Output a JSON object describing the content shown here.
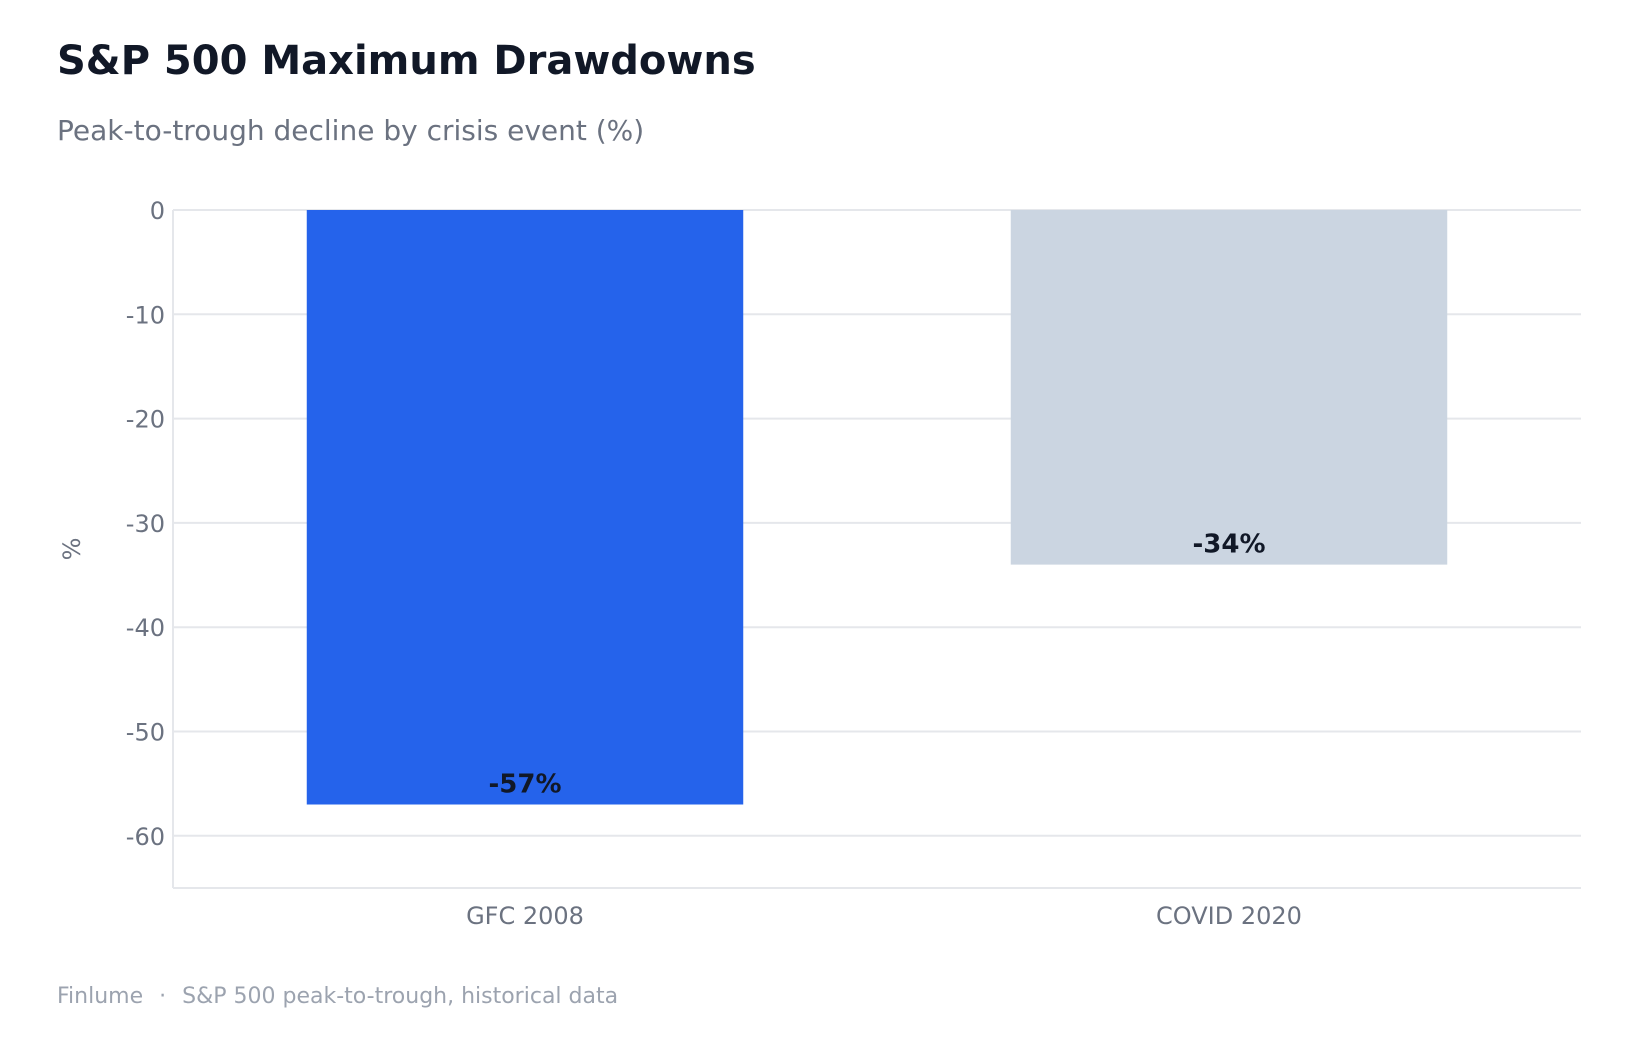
{
  "header": {
    "title": "S&P 500 Maximum Drawdowns",
    "subtitle": "Peak-to-trough decline by crisis event (%)"
  },
  "footer": {
    "brand": "Finlume",
    "separator": "·",
    "source": "S&P 500 peak-to-trough, historical data"
  },
  "colors": {
    "primary_bar": "#2563eb",
    "secondary_bar": "#cbd5e1",
    "grid": "#e5e7eb",
    "tick_text": "#6b7280",
    "value_label": "#111827"
  },
  "chart_data": {
    "type": "bar",
    "categories": [
      "GFC 2008",
      "COVID 2020"
    ],
    "values": [
      -57,
      -34
    ],
    "value_labels": [
      "-57%",
      "-34%"
    ],
    "bar_colors": [
      "#2563eb",
      "#cbd5e1"
    ],
    "title": "S&P 500 Maximum Drawdowns",
    "subtitle": "Peak-to-trough decline by crisis event (%)",
    "xlabel": "",
    "ylabel": "%",
    "ylim": [
      -65,
      0
    ],
    "yticks": [
      0,
      -10,
      -20,
      -30,
      -40,
      -50,
      -60
    ],
    "grid": true
  }
}
